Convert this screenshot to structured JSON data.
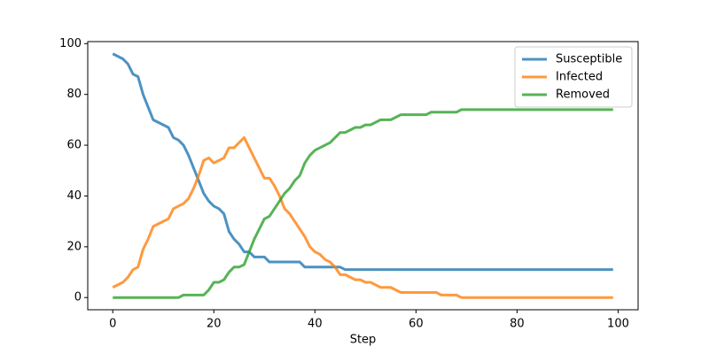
{
  "chart_data": {
    "type": "line",
    "xlabel": "Step",
    "x": [
      0,
      1,
      2,
      3,
      4,
      5,
      6,
      7,
      8,
      9,
      10,
      11,
      12,
      13,
      14,
      15,
      16,
      17,
      18,
      19,
      20,
      21,
      22,
      23,
      24,
      25,
      26,
      27,
      28,
      29,
      30,
      31,
      32,
      33,
      34,
      35,
      36,
      37,
      38,
      39,
      40,
      41,
      42,
      43,
      44,
      45,
      46,
      47,
      48,
      49,
      50,
      51,
      52,
      53,
      54,
      55,
      56,
      57,
      58,
      59,
      60,
      61,
      62,
      63,
      64,
      65,
      66,
      67,
      68,
      69,
      70,
      71,
      72,
      73,
      74,
      75,
      76,
      77,
      78,
      79,
      80,
      81,
      82,
      83,
      84,
      85,
      86,
      87,
      88,
      89,
      90,
      91,
      92,
      93,
      94,
      95,
      96,
      97,
      98,
      99
    ],
    "series": [
      {
        "name": "Susceptible",
        "color": "#1f77b4",
        "values": [
          96,
          95,
          94,
          92,
          88,
          87,
          80,
          75,
          70,
          69,
          68,
          67,
          63,
          62,
          60,
          56,
          51,
          46,
          41,
          38,
          36,
          35,
          33,
          26,
          23,
          21,
          18,
          18,
          16,
          16,
          16,
          14,
          14,
          14,
          14,
          14,
          14,
          14,
          12,
          12,
          12,
          12,
          12,
          12,
          12,
          12,
          11,
          11,
          11,
          11,
          11,
          11,
          11,
          11,
          11,
          11,
          11,
          11,
          11,
          11,
          11,
          11,
          11,
          11,
          11,
          11,
          11,
          11,
          11,
          11,
          11,
          11,
          11,
          11,
          11,
          11,
          11,
          11,
          11,
          11,
          11,
          11,
          11,
          11,
          11,
          11,
          11,
          11,
          11,
          11,
          11,
          11,
          11,
          11,
          11,
          11,
          11,
          11,
          11,
          11
        ]
      },
      {
        "name": "Infected",
        "color": "#ff7f0e",
        "values": [
          4,
          5,
          6,
          8,
          11,
          12,
          19,
          23,
          28,
          29,
          30,
          31,
          35,
          36,
          37,
          39,
          43,
          48,
          54,
          55,
          53,
          54,
          55,
          59,
          59,
          61,
          63,
          59,
          55,
          51,
          47,
          47,
          44,
          40,
          35,
          33,
          30,
          27,
          24,
          20,
          18,
          17,
          15,
          14,
          12,
          9,
          9,
          8,
          7,
          7,
          6,
          6,
          5,
          4,
          4,
          4,
          3,
          2,
          2,
          2,
          2,
          2,
          2,
          2,
          2,
          1,
          1,
          1,
          1,
          0,
          0,
          0,
          0,
          0,
          0,
          0,
          0,
          0,
          0,
          0,
          0,
          0,
          0,
          0,
          0,
          0,
          0,
          0,
          0,
          0,
          0,
          0,
          0,
          0,
          0,
          0,
          0,
          0,
          0,
          0
        ]
      },
      {
        "name": "Removed",
        "color": "#2ca02c",
        "values": [
          0,
          0,
          0,
          0,
          0,
          0,
          0,
          0,
          0,
          0,
          0,
          0,
          0,
          0,
          1,
          1,
          1,
          1,
          1,
          3,
          6,
          6,
          7,
          10,
          12,
          12,
          13,
          18,
          23,
          27,
          31,
          32,
          35,
          38,
          41,
          43,
          46,
          48,
          53,
          56,
          58,
          59,
          60,
          61,
          63,
          65,
          65,
          66,
          67,
          67,
          68,
          68,
          69,
          70,
          70,
          70,
          71,
          72,
          72,
          72,
          72,
          72,
          72,
          73,
          73,
          73,
          73,
          73,
          73,
          74,
          74,
          74,
          74,
          74,
          74,
          74,
          74,
          74,
          74,
          74,
          74,
          74,
          74,
          74,
          74,
          74,
          74,
          74,
          74,
          74,
          74,
          74,
          74,
          74,
          74,
          74,
          74,
          74,
          74,
          74
        ]
      }
    ],
    "xlim": [
      -4.95,
      103.95
    ],
    "ylim": [
      -4.8,
      100.8
    ],
    "xticks": [
      0,
      20,
      40,
      60,
      80,
      100
    ],
    "yticks": [
      0,
      20,
      40,
      60,
      80,
      100
    ],
    "legend": "upper right"
  }
}
